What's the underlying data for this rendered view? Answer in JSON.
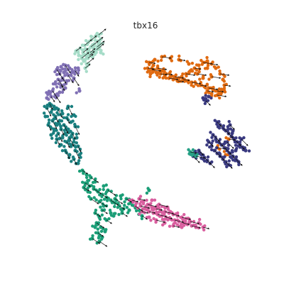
{
  "chart_data": {
    "type": "scatter",
    "title": "tbx16",
    "xlabel": "",
    "ylabel": "",
    "axes_visible": false,
    "grid": false,
    "legend": "none",
    "overlay": "velocity-arrows",
    "arrow_color": "#111111",
    "series": [
      {
        "color": "#a6dcc8",
        "points": [
          [
            107,
            72
          ],
          [
            113,
            68
          ],
          [
            119,
            64
          ],
          [
            124,
            60
          ],
          [
            129,
            56
          ],
          [
            134,
            52
          ],
          [
            139,
            49
          ],
          [
            111,
            78
          ],
          [
            117,
            74
          ],
          [
            123,
            70
          ],
          [
            128,
            66
          ],
          [
            133,
            62
          ],
          [
            138,
            58
          ],
          [
            142,
            55
          ],
          [
            115,
            82
          ],
          [
            121,
            78
          ],
          [
            127,
            74
          ],
          [
            132,
            70
          ],
          [
            137,
            66
          ],
          [
            141,
            62
          ],
          [
            126,
            78
          ],
          [
            131,
            74
          ],
          [
            136,
            70
          ],
          [
            118,
            86
          ],
          [
            124,
            82
          ],
          [
            130,
            80
          ],
          [
            122,
            90
          ],
          [
            142,
            74
          ],
          [
            120,
            96
          ]
        ]
      },
      {
        "color": "#8070b4",
        "points": [
          [
            80,
            98
          ],
          [
            86,
            94
          ],
          [
            92,
            92
          ],
          [
            98,
            96
          ],
          [
            84,
            104
          ],
          [
            90,
            102
          ],
          [
            96,
            106
          ],
          [
            101,
            102
          ],
          [
            88,
            110
          ],
          [
            94,
            114
          ],
          [
            82,
            112
          ],
          [
            78,
            118
          ],
          [
            86,
            120
          ],
          [
            92,
            124
          ],
          [
            74,
            128
          ],
          [
            68,
            132
          ],
          [
            72,
            136
          ],
          [
            66,
            138
          ],
          [
            78,
            134
          ],
          [
            84,
            130
          ],
          [
            106,
            100
          ],
          [
            110,
            96
          ],
          [
            104,
            110
          ],
          [
            112,
            128
          ]
        ]
      },
      {
        "color": "#1a7f7f",
        "points": [
          [
            70,
            146
          ],
          [
            76,
            150
          ],
          [
            82,
            154
          ],
          [
            88,
            160
          ],
          [
            94,
            166
          ],
          [
            100,
            172
          ],
          [
            106,
            178
          ],
          [
            72,
            158
          ],
          [
            78,
            164
          ],
          [
            84,
            170
          ],
          [
            90,
            176
          ],
          [
            96,
            182
          ],
          [
            102,
            188
          ],
          [
            108,
            194
          ],
          [
            74,
            170
          ],
          [
            80,
            176
          ],
          [
            86,
            182
          ],
          [
            92,
            188
          ],
          [
            98,
            194
          ],
          [
            104,
            200
          ],
          [
            110,
            206
          ],
          [
            76,
            182
          ],
          [
            82,
            188
          ],
          [
            88,
            194
          ],
          [
            94,
            200
          ],
          [
            100,
            206
          ],
          [
            106,
            212
          ],
          [
            112,
            218
          ],
          [
            80,
            196
          ],
          [
            86,
            204
          ],
          [
            92,
            212
          ],
          [
            98,
            218
          ],
          [
            104,
            224
          ],
          [
            110,
            230
          ],
          [
            66,
            152
          ],
          [
            64,
            164
          ],
          [
            68,
            176
          ],
          [
            72,
            190
          ],
          [
            96,
            150
          ],
          [
            104,
            162
          ]
        ]
      },
      {
        "color": "#1b9e77",
        "points": [
          [
            116,
            240
          ],
          [
            122,
            246
          ],
          [
            128,
            250
          ],
          [
            134,
            256
          ],
          [
            120,
            258
          ],
          [
            126,
            262
          ],
          [
            132,
            266
          ],
          [
            138,
            270
          ],
          [
            144,
            274
          ],
          [
            150,
            278
          ],
          [
            156,
            282
          ],
          [
            162,
            286
          ],
          [
            168,
            290
          ],
          [
            174,
            294
          ],
          [
            140,
            284
          ],
          [
            146,
            290
          ],
          [
            134,
            300
          ],
          [
            140,
            306
          ],
          [
            136,
            314
          ],
          [
            142,
            320
          ],
          [
            138,
            328
          ],
          [
            144,
            334
          ],
          [
            140,
            340
          ],
          [
            148,
            326
          ],
          [
            150,
            310
          ],
          [
            156,
            300
          ],
          [
            162,
            280
          ],
          [
            170,
            276
          ],
          [
            178,
            280
          ],
          [
            184,
            286
          ],
          [
            190,
            290
          ],
          [
            182,
            296
          ],
          [
            172,
            300
          ],
          [
            160,
            304
          ],
          [
            128,
            280
          ],
          [
            124,
            270
          ],
          [
            118,
            264
          ],
          [
            146,
            262
          ],
          [
            152,
            268
          ],
          [
            196,
            296
          ],
          [
            200,
            304
          ],
          [
            210,
            268
          ],
          [
            130,
            336
          ],
          [
            134,
            320
          ],
          [
            144,
            296
          ]
        ]
      },
      {
        "color": "#d95f9f",
        "points": [
          [
            186,
            282
          ],
          [
            192,
            286
          ],
          [
            198,
            290
          ],
          [
            204,
            294
          ],
          [
            210,
            298
          ],
          [
            216,
            300
          ],
          [
            222,
            302
          ],
          [
            228,
            304
          ],
          [
            234,
            306
          ],
          [
            240,
            308
          ],
          [
            246,
            310
          ],
          [
            252,
            312
          ],
          [
            258,
            314
          ],
          [
            264,
            316
          ],
          [
            270,
            318
          ],
          [
            276,
            320
          ],
          [
            196,
            280
          ],
          [
            202,
            284
          ],
          [
            208,
            288
          ],
          [
            214,
            292
          ],
          [
            220,
            294
          ],
          [
            226,
            296
          ],
          [
            232,
            298
          ],
          [
            238,
            300
          ],
          [
            244,
            302
          ],
          [
            250,
            304
          ],
          [
            256,
            306
          ],
          [
            262,
            308
          ],
          [
            200,
            298
          ],
          [
            210,
            306
          ],
          [
            220,
            310
          ],
          [
            232,
            314
          ],
          [
            244,
            318
          ],
          [
            256,
            320
          ],
          [
            268,
            312
          ],
          [
            280,
            314
          ],
          [
            286,
            320
          ],
          [
            214,
            282
          ],
          [
            224,
            288
          ],
          [
            236,
            292
          ]
        ]
      },
      {
        "color": "#e06a10",
        "points": [
          [
            210,
            88
          ],
          [
            216,
            92
          ],
          [
            222,
            96
          ],
          [
            228,
            100
          ],
          [
            234,
            104
          ],
          [
            240,
            106
          ],
          [
            246,
            108
          ],
          [
            252,
            110
          ],
          [
            258,
            112
          ],
          [
            264,
            114
          ],
          [
            270,
            116
          ],
          [
            276,
            118
          ],
          [
            282,
            120
          ],
          [
            288,
            122
          ],
          [
            294,
            124
          ],
          [
            300,
            126
          ],
          [
            306,
            128
          ],
          [
            312,
            130
          ],
          [
            214,
            98
          ],
          [
            220,
            102
          ],
          [
            226,
            104
          ],
          [
            232,
            108
          ],
          [
            238,
            110
          ],
          [
            244,
            112
          ],
          [
            250,
            114
          ],
          [
            256,
            108
          ],
          [
            262,
            104
          ],
          [
            268,
            100
          ],
          [
            274,
            96
          ],
          [
            280,
            92
          ],
          [
            286,
            88
          ],
          [
            292,
            86
          ],
          [
            298,
            90
          ],
          [
            304,
            96
          ],
          [
            310,
            104
          ],
          [
            314,
            112
          ],
          [
            316,
            120
          ],
          [
            312,
            126
          ],
          [
            306,
            134
          ],
          [
            298,
            132
          ],
          [
            292,
            128
          ],
          [
            286,
            110
          ],
          [
            278,
            104
          ],
          [
            266,
            90
          ],
          [
            252,
            84
          ],
          [
            240,
            82
          ],
          [
            228,
            80
          ],
          [
            218,
            84
          ],
          [
            208,
            96
          ],
          [
            212,
            104
          ],
          [
            298,
            108
          ],
          [
            292,
            96
          ],
          [
            322,
            196
          ],
          [
            318,
            218
          ],
          [
            306,
            208
          ]
        ]
      },
      {
        "color": "#3a3a80",
        "points": [
          [
            306,
            172
          ],
          [
            310,
            176
          ],
          [
            314,
            180
          ],
          [
            318,
            184
          ],
          [
            322,
            188
          ],
          [
            326,
            192
          ],
          [
            330,
            196
          ],
          [
            334,
            200
          ],
          [
            338,
            204
          ],
          [
            342,
            208
          ],
          [
            300,
            190
          ],
          [
            304,
            196
          ],
          [
            308,
            200
          ],
          [
            312,
            204
          ],
          [
            316,
            208
          ],
          [
            320,
            212
          ],
          [
            324,
            216
          ],
          [
            328,
            220
          ],
          [
            332,
            224
          ],
          [
            336,
            228
          ],
          [
            294,
            200
          ],
          [
            298,
            206
          ],
          [
            302,
            212
          ],
          [
            306,
            216
          ],
          [
            310,
            220
          ],
          [
            314,
            224
          ],
          [
            318,
            228
          ],
          [
            322,
            232
          ],
          [
            280,
            212
          ],
          [
            284,
            218
          ],
          [
            288,
            222
          ],
          [
            292,
            226
          ],
          [
            296,
            230
          ],
          [
            276,
            216
          ],
          [
            272,
            220
          ],
          [
            286,
            138
          ],
          [
            290,
            142
          ],
          [
            294,
            136
          ],
          [
            320,
            200
          ],
          [
            328,
            184
          ],
          [
            324,
            176
          ],
          [
            332,
            212
          ],
          [
            340,
            196
          ],
          [
            346,
            212
          ]
        ]
      },
      {
        "color": "#26a085",
        "points": [
          [
            268,
            214
          ],
          [
            272,
            216
          ],
          [
            276,
            220
          ]
        ]
      }
    ]
  }
}
